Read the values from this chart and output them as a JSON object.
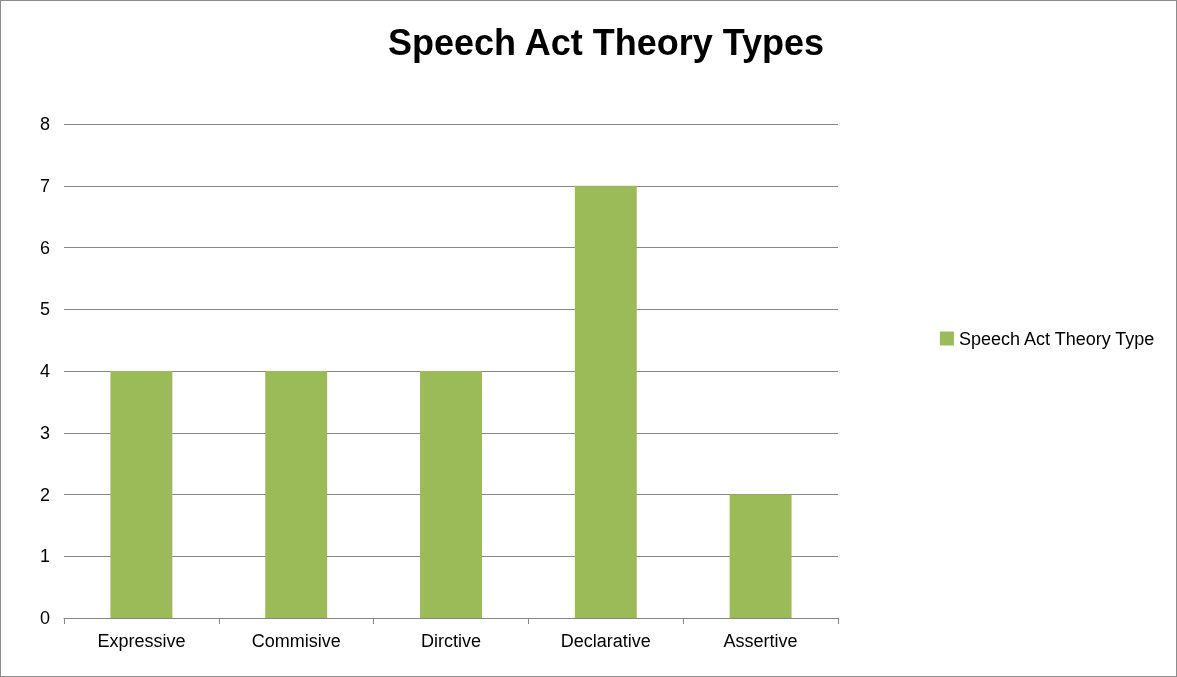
{
  "chart_data": {
    "type": "bar",
    "title": "Speech Act Theory Types",
    "categories": [
      "Expressive",
      "Commisive",
      "Dirctive",
      "Declarative",
      "Assertive"
    ],
    "series": [
      {
        "name": "Speech Act Theory Type",
        "color": "#9bbb59",
        "values": [
          4,
          4,
          4,
          7,
          2
        ]
      }
    ],
    "ylim": [
      0,
      8
    ],
    "yticks": [
      0,
      1,
      2,
      3,
      4,
      5,
      6,
      7,
      8
    ],
    "grid": "y",
    "legend": "right"
  }
}
